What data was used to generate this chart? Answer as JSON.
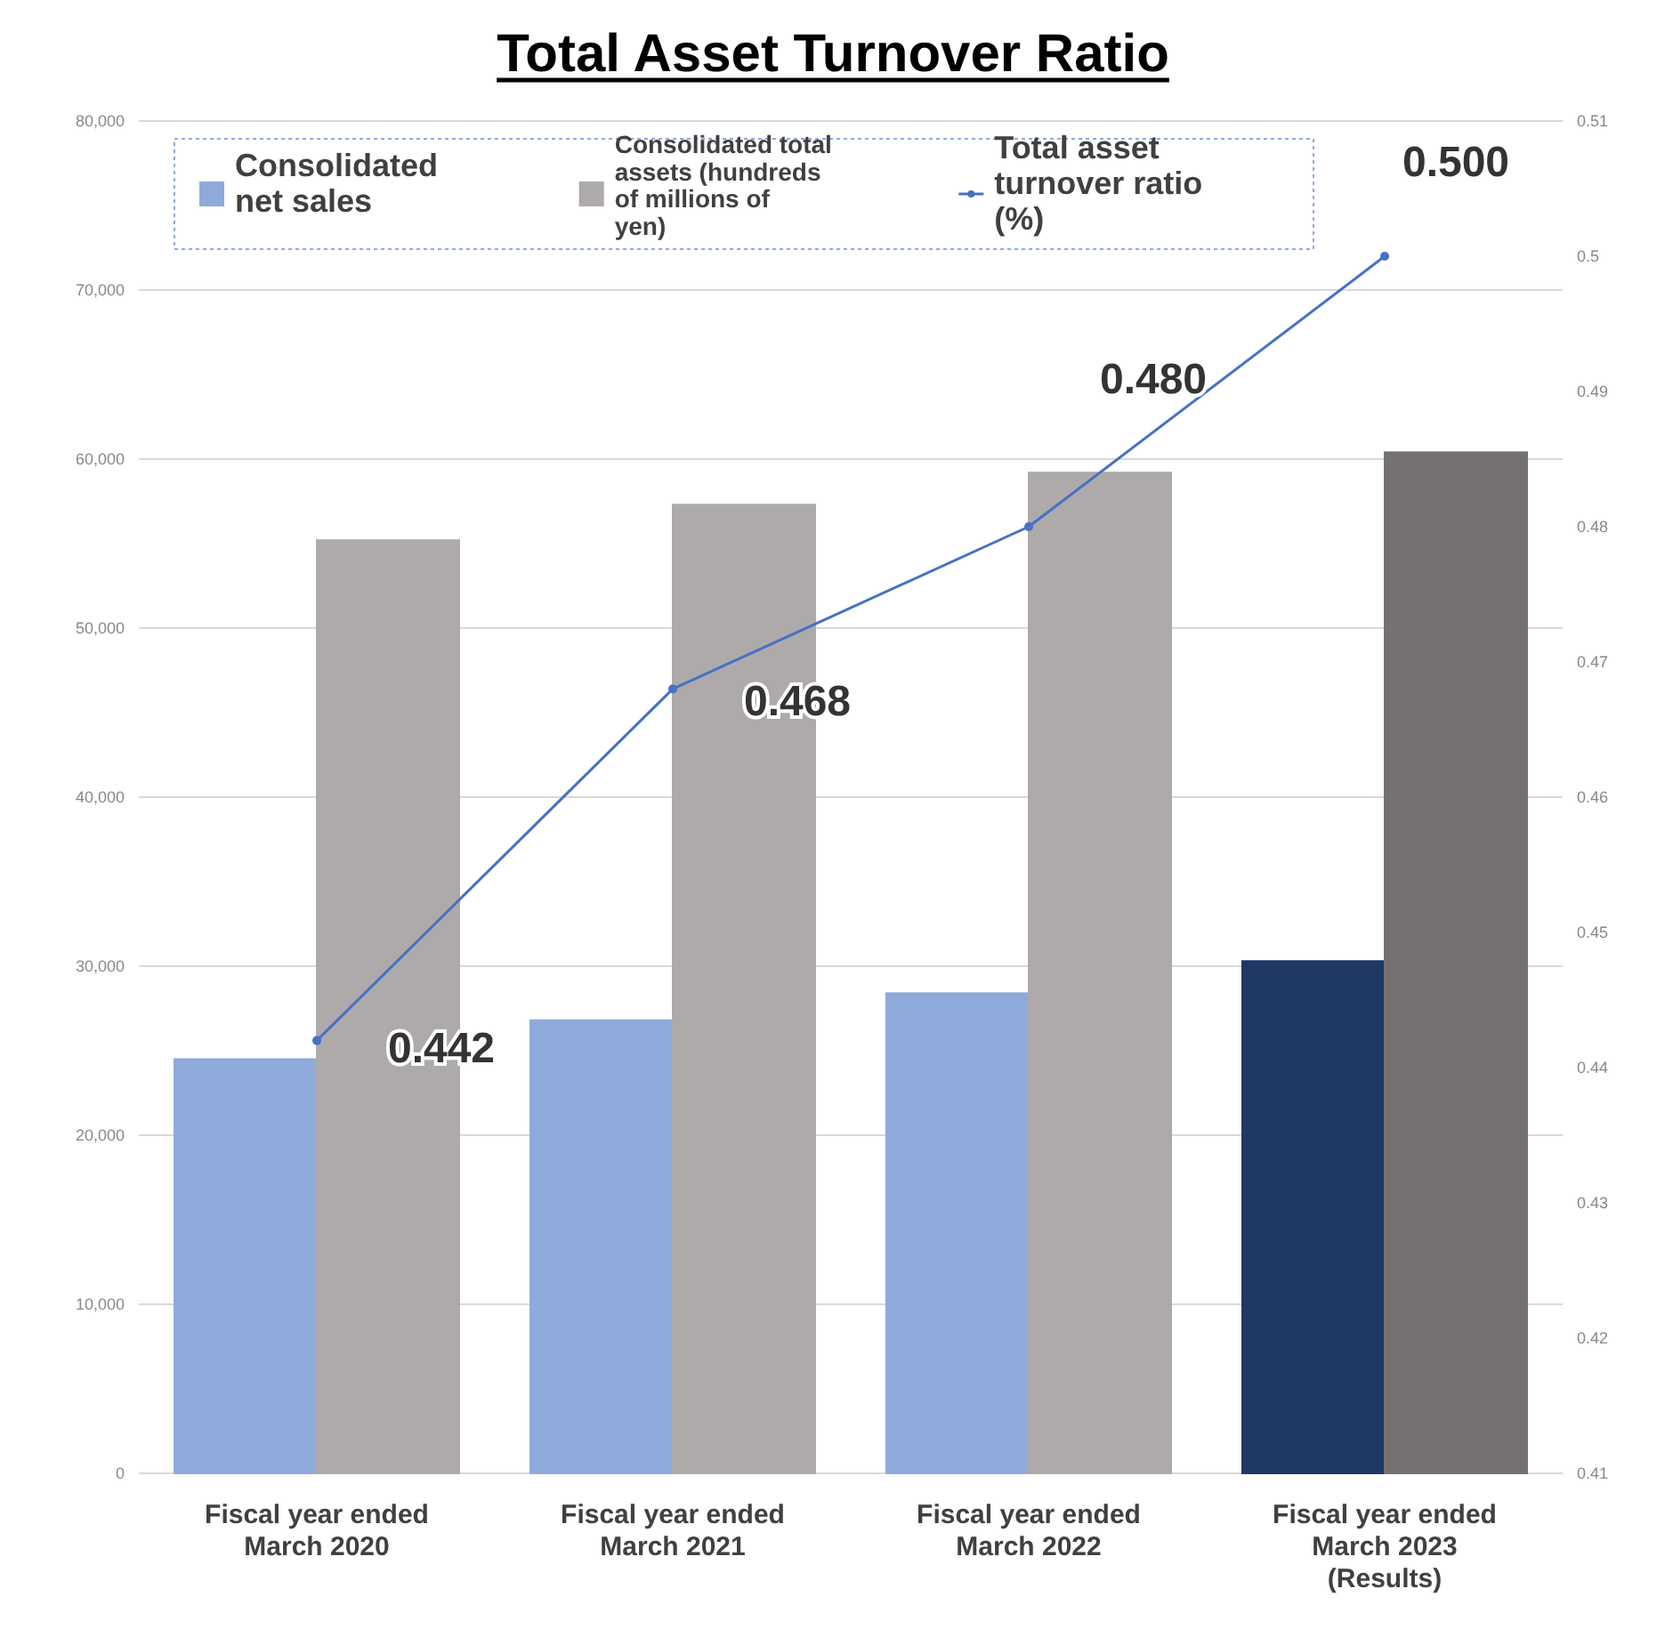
{
  "chart_data": {
    "type": "bar",
    "title": "Total Asset Turnover Ratio",
    "categories": [
      "Fiscal year ended March 2020",
      "Fiscal year ended March 2021",
      "Fiscal year ended March 2022",
      "Fiscal year ended March 2023 (Results)"
    ],
    "series": [
      {
        "name": "Consolidated net sales",
        "color": "#8eaadb",
        "colors": [
          "#8eaadb",
          "#8eaadb",
          "#8eaadb",
          "#1f3864"
        ],
        "values": [
          24500,
          26800,
          28400,
          30300
        ]
      },
      {
        "name": "Consolidated total assets (hundreds of millions of yen)",
        "color": "#aeaaaa",
        "colors": [
          "#aeaaaa",
          "#aeaaaa",
          "#aeaaaa",
          "#767171"
        ],
        "values": [
          55200,
          57300,
          59200,
          60400
        ]
      },
      {
        "name": "Total asset turnover ratio (%)",
        "type": "line",
        "axis": "y2",
        "color": "#4472c4",
        "marker": "circle",
        "values": [
          0.442,
          0.468,
          0.48,
          0.5
        ],
        "value_labels": [
          "0.442",
          "0.468",
          "0.480",
          "0.500"
        ]
      }
    ],
    "ylim": [
      0,
      80000
    ],
    "yticks": [
      0,
      {
        "value": 10000,
        "label": "10,000"
      },
      {
        "value": 20000,
        "label": "20,000"
      },
      {
        "value": 30000,
        "label": "30,000"
      },
      {
        "value": 40000,
        "label": "40,000"
      },
      {
        "value": 50000,
        "label": "50,000"
      },
      {
        "value": 60000,
        "label": "60,000"
      },
      {
        "value": 70000,
        "label": "70,000"
      },
      {
        "value": 80000,
        "label": "80,000"
      }
    ],
    "y2lim": [
      0.41,
      0.51
    ],
    "y2ticks": [
      0.41,
      0.42,
      0.43,
      0.44,
      0.45,
      0.46,
      0.47,
      0.48,
      0.49,
      0.5,
      0.51
    ],
    "grid": "y",
    "legend": "top"
  }
}
